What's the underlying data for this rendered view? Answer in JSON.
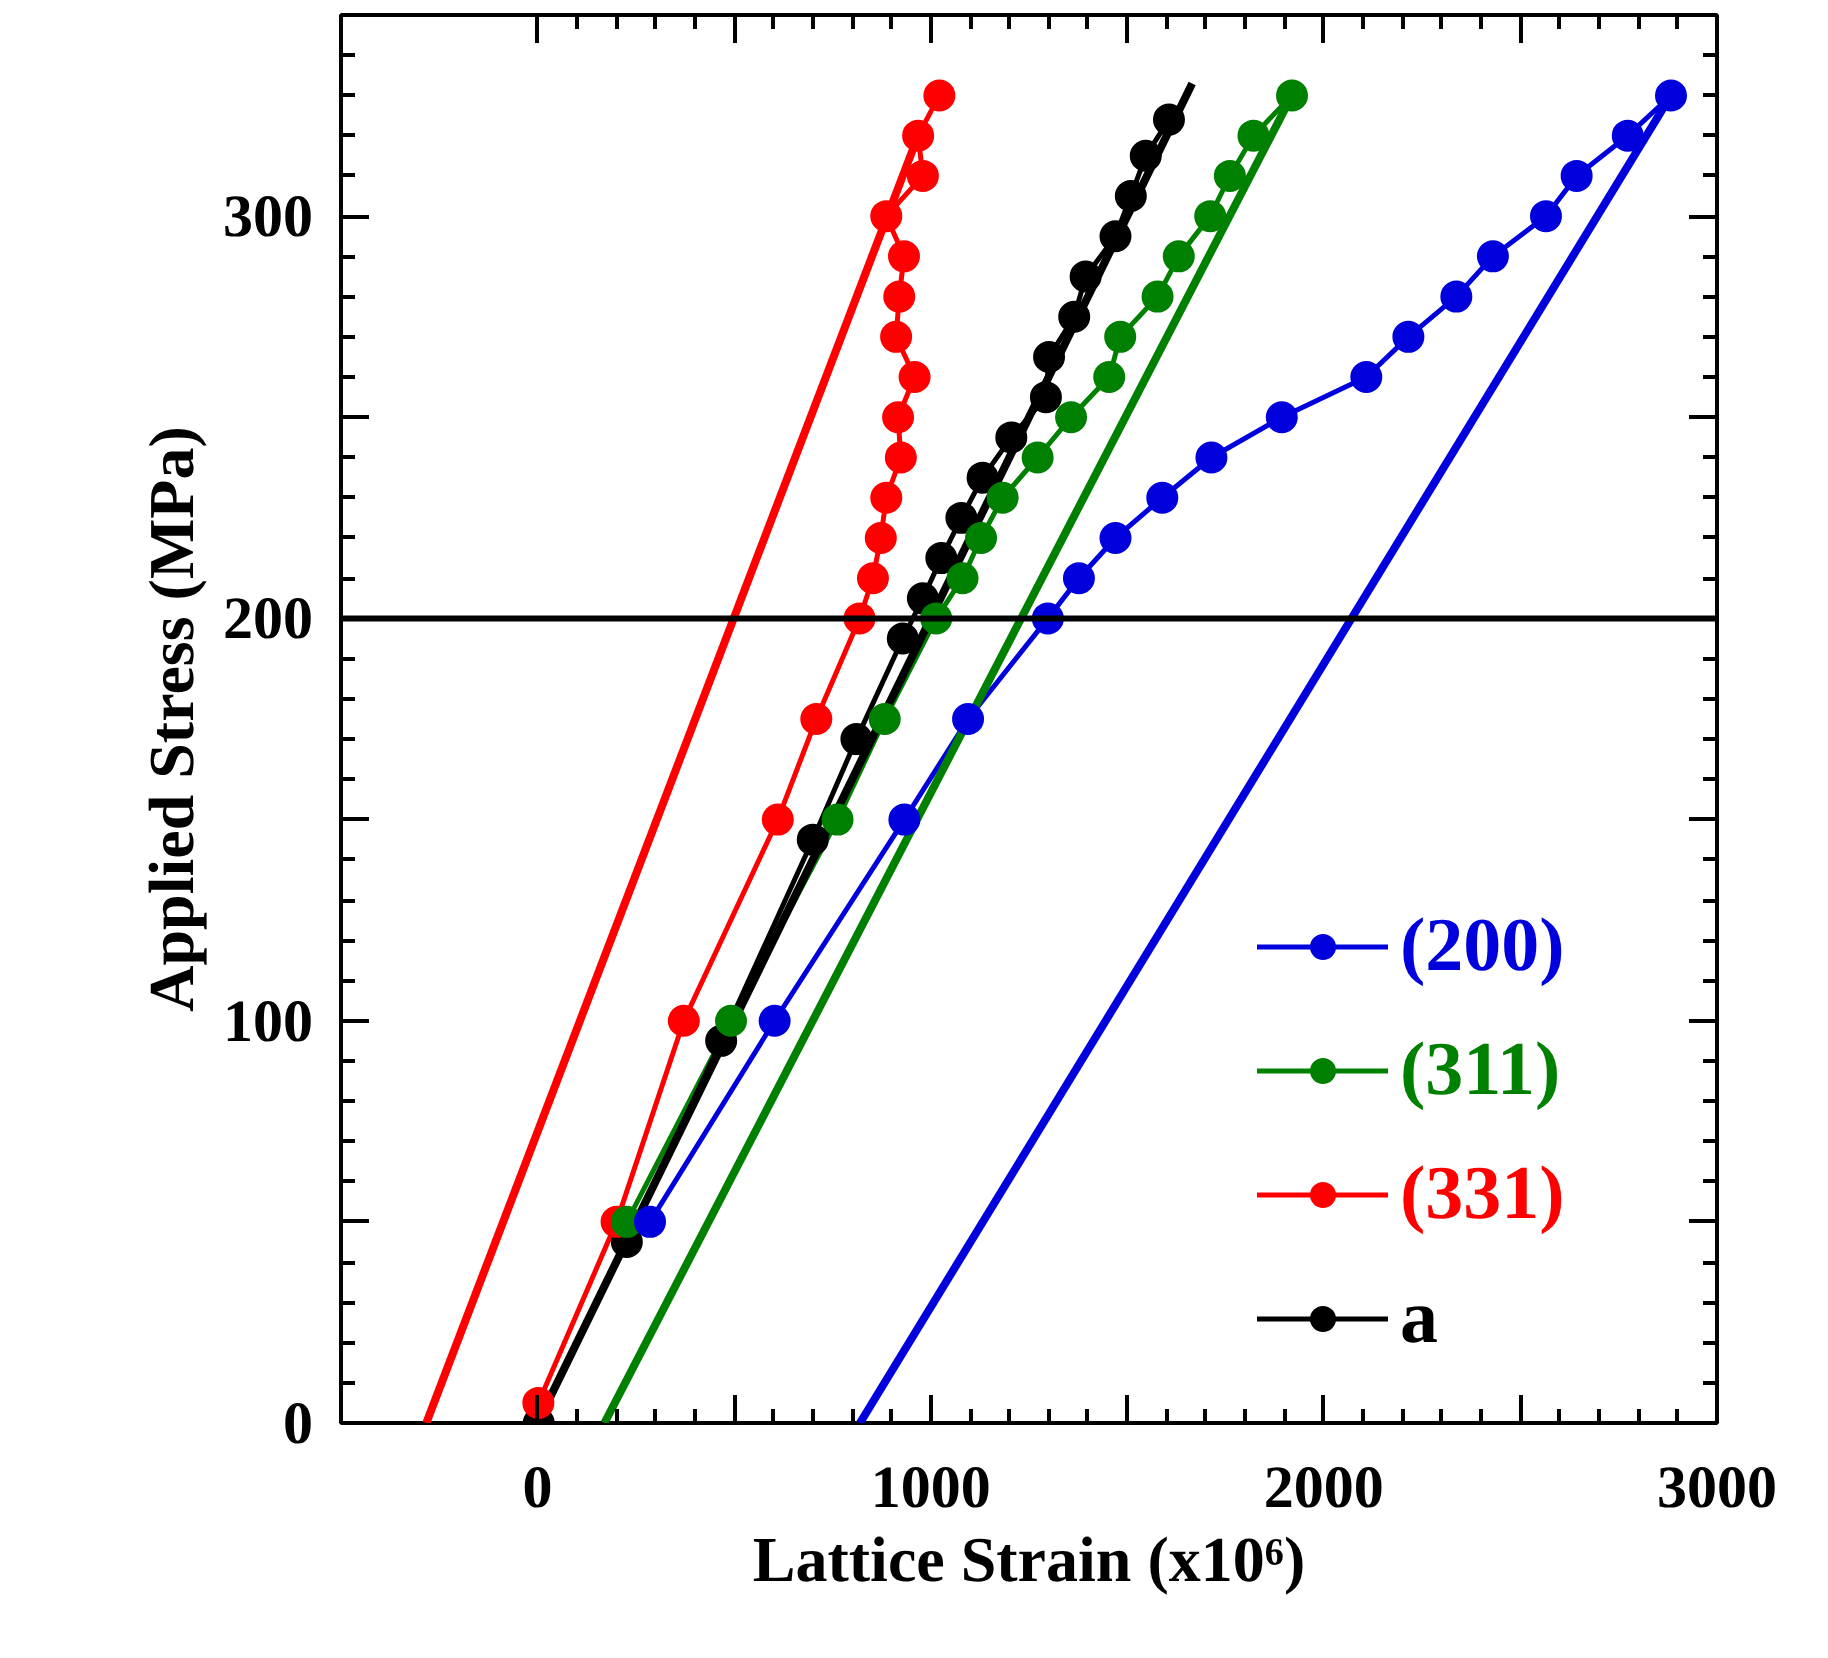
{
  "chart_data": {
    "type": "line",
    "xlabel": "Lattice Strain (x10⁶)",
    "ylabel": "Applied Stress (MPa)",
    "xlim": [
      -500,
      3000
    ],
    "ylim": [
      0,
      350
    ],
    "xticks": [
      0,
      {
        "value": 500,
        "label": null
      },
      1000,
      {
        "value": 1500,
        "label": null
      },
      2000,
      {
        "value": 2500,
        "label": null
      },
      3000
    ],
    "yticks": [
      0,
      {
        "value": 50,
        "label": null
      },
      100,
      {
        "value": 150,
        "label": null
      },
      200,
      {
        "value": 250,
        "label": null
      },
      300,
      {
        "value": 350,
        "label": null
      }
    ],
    "marker": "circle",
    "legend": "bottom right",
    "grid": false,
    "ref_lines": [
      {
        "axis": "y",
        "value": 200,
        "color": "#000000"
      }
    ],
    "series": [
      {
        "name": "(200)",
        "color": "#0000dd",
        "x": [
          286,
          603,
          933,
          1095,
          1298,
          1377,
          1470,
          1589,
          1714,
          1893,
          2108,
          2215,
          2337,
          2430,
          2565,
          2643,
          2773,
          2883
        ],
        "values": [
          50,
          100,
          150,
          175,
          200,
          210,
          220,
          230,
          240,
          250,
          260,
          270,
          280,
          290,
          300,
          310,
          320,
          330
        ]
      },
      {
        "name": "(311)",
        "color": "#008000",
        "x": [
          227,
          492,
          763,
          883,
          1014,
          1081,
          1128,
          1183,
          1272,
          1357,
          1454,
          1482,
          1577,
          1631,
          1711,
          1761,
          1821,
          1919
        ],
        "values": [
          50,
          100,
          150,
          175,
          200,
          210,
          220,
          230,
          240,
          250,
          260,
          270,
          280,
          290,
          300,
          310,
          320,
          330
        ]
      },
      {
        "name": "(331)",
        "color": "#ff0000",
        "x": [
          2,
          201,
          372,
          611,
          709,
          819,
          853,
          873,
          887,
          924,
          917,
          959,
          912,
          920,
          932,
          887,
          980,
          968,
          1022
        ],
        "values": [
          5,
          50,
          100,
          150,
          175,
          200,
          210,
          220,
          230,
          240,
          250,
          260,
          270,
          280,
          290,
          300,
          310,
          320,
          330
        ]
      },
      {
        "name": "a",
        "color": "#000000",
        "x": [
          3,
          227,
          467,
          700,
          811,
          929,
          980,
          1027,
          1078,
          1132,
          1205,
          1293,
          1301,
          1365,
          1394,
          1470,
          1509,
          1547,
          1606
        ],
        "values": [
          0,
          45,
          95,
          145,
          170,
          195,
          205,
          215,
          225,
          235,
          245,
          255,
          265,
          275,
          285,
          295,
          305,
          315,
          324
        ]
      },
      {
        "type": "line",
        "marker": "none",
        "color": "#0000dd",
        "x": [
          820,
          2883
        ],
        "values": [
          0,
          330
        ]
      },
      {
        "type": "line",
        "marker": "none",
        "color": "#008000",
        "x": [
          170,
          1919
        ],
        "values": [
          0,
          330
        ]
      },
      {
        "type": "line",
        "marker": "none",
        "color": "#ff0000",
        "x": [
          -283,
          968
        ],
        "values": [
          0,
          320
        ]
      },
      {
        "type": "line",
        "marker": "none",
        "color": "#000000",
        "x": [
          0,
          1665
        ],
        "values": [
          0,
          333
        ]
      }
    ]
  }
}
